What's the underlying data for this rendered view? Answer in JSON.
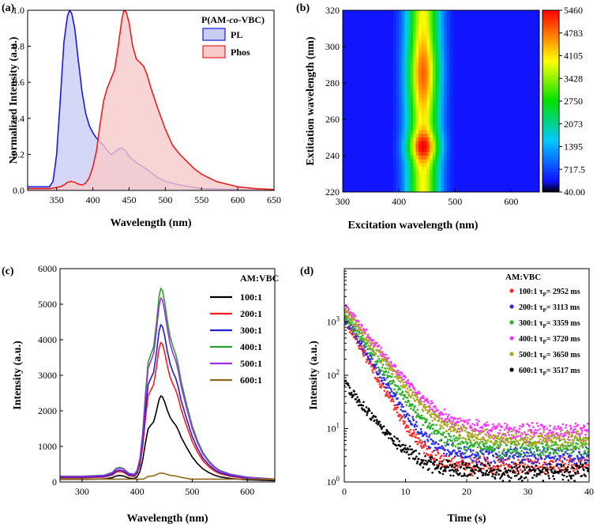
{
  "figure": {
    "panel_labels": [
      "(a)",
      "(b)",
      "(c)",
      "(d)"
    ]
  },
  "chart_data": [
    {
      "panel": "(a)",
      "type": "area",
      "title": "P(AM-co-VBC)",
      "title_parts": [
        "P(AM-",
        "co",
        "-VBC)"
      ],
      "xlabel": "Wavelength (nm)",
      "ylabel": "Normalized Intensity (a.u.)",
      "xlim": [
        310,
        650
      ],
      "ylim": [
        0,
        1.0
      ],
      "xticks": [
        350,
        400,
        450,
        500,
        550,
        600,
        650
      ],
      "yticks": [
        0.0,
        0.2,
        0.4,
        0.6,
        0.8,
        1.0
      ],
      "legend": "top-right",
      "series": [
        {
          "name": "PL",
          "color": "#1a1adc",
          "fill": "#c9cdf3",
          "x": [
            310,
            330,
            340,
            345,
            350,
            355,
            360,
            365,
            368,
            371,
            375,
            380,
            385,
            390,
            395,
            400,
            405,
            410,
            415,
            420,
            425,
            430,
            435,
            440,
            445,
            450,
            455,
            460,
            470,
            480,
            490,
            500,
            520,
            550,
            600,
            650
          ],
          "y": [
            0.02,
            0.02,
            0.02,
            0.05,
            0.2,
            0.5,
            0.82,
            0.97,
            1.0,
            0.98,
            0.9,
            0.72,
            0.55,
            0.43,
            0.36,
            0.32,
            0.29,
            0.27,
            0.25,
            0.22,
            0.2,
            0.21,
            0.23,
            0.235,
            0.22,
            0.19,
            0.17,
            0.155,
            0.13,
            0.1,
            0.07,
            0.05,
            0.03,
            0.01,
            0.005,
            0.0
          ]
        },
        {
          "name": "Phos",
          "color": "#e82020",
          "fill": "#f7c9c9",
          "x": [
            310,
            340,
            355,
            360,
            365,
            370,
            375,
            380,
            385,
            390,
            395,
            400,
            405,
            410,
            415,
            420,
            425,
            430,
            435,
            440,
            443,
            446,
            450,
            455,
            460,
            465,
            470,
            475,
            480,
            490,
            500,
            510,
            520,
            530,
            540,
            550,
            570,
            600,
            625,
            650
          ],
          "y": [
            0.01,
            0.01,
            0.02,
            0.03,
            0.045,
            0.05,
            0.045,
            0.035,
            0.03,
            0.04,
            0.07,
            0.13,
            0.22,
            0.37,
            0.5,
            0.57,
            0.62,
            0.67,
            0.8,
            0.95,
            1.0,
            0.99,
            0.93,
            0.8,
            0.73,
            0.71,
            0.69,
            0.64,
            0.57,
            0.45,
            0.34,
            0.25,
            0.2,
            0.16,
            0.12,
            0.09,
            0.05,
            0.02,
            0.01,
            0.005
          ]
        }
      ]
    },
    {
      "panel": "(b)",
      "type": "heatmap",
      "xlabel": "Excitation wavelength (nm)",
      "ylabel": "Extitation wavelength (nm)",
      "xlim": [
        300,
        650
      ],
      "ylim": [
        220,
        320
      ],
      "xticks": [
        300,
        400,
        500,
        600
      ],
      "yticks": [
        220,
        240,
        260,
        280,
        300,
        320
      ],
      "colorbar": {
        "ticks": [
          "40.00",
          "717.5",
          "1395",
          "2073",
          "2750",
          "3428",
          "4105",
          "4783",
          "5460"
        ],
        "min": 40,
        "max": 5460
      },
      "peak": {
        "x": 443,
        "y": 245,
        "value": 5460
      },
      "secondary_peak": {
        "x": 443,
        "y": 285,
        "value": 4300
      },
      "spread_nm": 28
    },
    {
      "panel": "(c)",
      "type": "line",
      "xlabel": "Wavelength (nm)",
      "ylabel": "Intensity (a.u.)",
      "xlim": [
        260,
        650
      ],
      "ylim": [
        0,
        6000
      ],
      "xticks": [
        300,
        400,
        500,
        600
      ],
      "yticks": [
        0,
        1000,
        2000,
        3000,
        4000,
        5000,
        6000
      ],
      "legend_title": "AM:VBC",
      "legend": "top-right",
      "shape": {
        "x": [
          260,
          300,
          340,
          355,
          362,
          368,
          375,
          385,
          395,
          400,
          405,
          410,
          415,
          420,
          425,
          430,
          435,
          440,
          443,
          446,
          450,
          455,
          460,
          465,
          470,
          475,
          480,
          490,
          500,
          510,
          520,
          530,
          540,
          550,
          570,
          600,
          625,
          650
        ],
        "y": [
          0.03,
          0.03,
          0.035,
          0.05,
          0.07,
          0.075,
          0.07,
          0.045,
          0.04,
          0.06,
          0.12,
          0.25,
          0.45,
          0.62,
          0.66,
          0.7,
          0.82,
          0.96,
          1.0,
          0.99,
          0.93,
          0.83,
          0.75,
          0.7,
          0.66,
          0.6,
          0.52,
          0.4,
          0.29,
          0.21,
          0.15,
          0.11,
          0.08,
          0.06,
          0.04,
          0.025,
          0.02,
          0.015
        ]
      },
      "series": [
        {
          "name": "100:1",
          "color": "#000000",
          "peak": 2420
        },
        {
          "name": "200:1",
          "color": "#ff1a1a",
          "peak": 3920
        },
        {
          "name": "300:1",
          "color": "#2020c8",
          "peak": 4420
        },
        {
          "name": "400:1",
          "color": "#2aa02a",
          "peak": 5440
        },
        {
          "name": "500:1",
          "color": "#9b30e0",
          "peak": 5170
        },
        {
          "name": "600:1",
          "color": "#8b6a1a",
          "peak": 250
        }
      ]
    },
    {
      "panel": "(d)",
      "type": "scatter",
      "xlabel": "Time (s)",
      "ylabel": "Intensity (a.u.)",
      "xlim": [
        0,
        40
      ],
      "ylim": [
        1,
        10000
      ],
      "yscale": "log",
      "xticks": [
        0,
        10,
        20,
        30,
        40
      ],
      "yticks": [
        1,
        10,
        100,
        1000
      ],
      "ytick_labels": [
        [
          "10",
          "0"
        ],
        [
          "10",
          "1"
        ],
        [
          "10",
          "2"
        ],
        [
          "10",
          "3"
        ]
      ],
      "legend_title": "AM:VBC",
      "legend": "top-right",
      "series": [
        {
          "name": "100:1",
          "tau_label": "τ",
          "tau_sub": "P",
          "tau": "= 2952 ms",
          "color": "#ff2a2a",
          "a0": 1200,
          "tau_s": 2.1,
          "floor": 2.6
        },
        {
          "name": "200:1",
          "tau_label": "τ",
          "tau_sub": "P",
          "tau": "= 3113 ms",
          "color": "#2a2ae8",
          "a0": 1300,
          "tau_s": 2.3,
          "floor": 4.0
        },
        {
          "name": "300:1",
          "tau_label": "τ",
          "tau_sub": "P",
          "tau": "= 3359 ms",
          "color": "#2ab02a",
          "a0": 1450,
          "tau_s": 2.6,
          "floor": 5.5
        },
        {
          "name": "400:1",
          "tau_label": "τ",
          "tau_sub": "P",
          "tau": "= 3720 ms",
          "color": "#ff30ff",
          "a0": 2000,
          "tau_s": 3.0,
          "floor": 11.0
        },
        {
          "name": "500:1",
          "tau_label": "τ",
          "tau_sub": "P",
          "tau": "= 3650 ms",
          "color": "#a8a81a",
          "a0": 1700,
          "tau_s": 2.9,
          "floor": 8.0
        },
        {
          "name": "600:1",
          "tau_label": "τ",
          "tau_sub": "P",
          "tau": "= 3517 ms",
          "color": "#000000",
          "a0": 70,
          "tau_s": 3.0,
          "floor": 2.0
        }
      ]
    }
  ]
}
